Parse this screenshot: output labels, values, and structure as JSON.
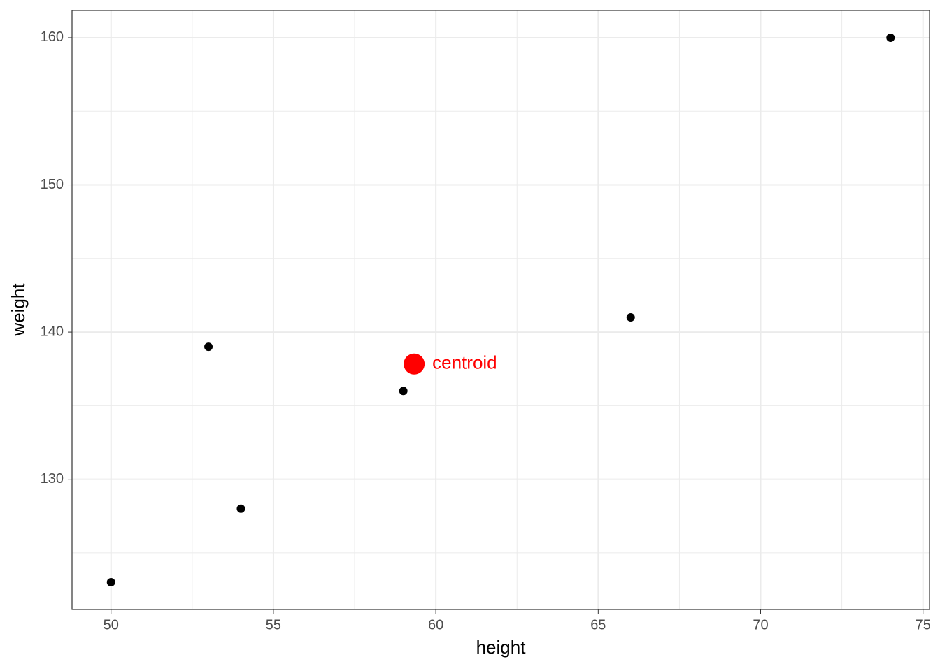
{
  "chart_data": {
    "type": "scatter",
    "x_label": "height",
    "y_label": "weight",
    "series": [
      {
        "color": "#000000",
        "x": [
          50,
          53,
          54,
          59,
          66,
          74
        ],
        "y": [
          123,
          139,
          128,
          136,
          141,
          160
        ]
      },
      {
        "color": "#ff0000",
        "x": [
          59.333
        ],
        "y": [
          137.833
        ],
        "label": "centroid"
      }
    ],
    "xlim": [
      48.8,
      75.2
    ],
    "ylim": [
      121.15,
      161.85
    ],
    "xticks": [
      50,
      55,
      60,
      65,
      70,
      75
    ],
    "yticks": [
      130,
      140,
      150,
      160
    ],
    "xminor": [
      52.5,
      57.5,
      62.5,
      67.5,
      72.5
    ],
    "yminor": [
      125,
      135,
      145,
      155
    ],
    "grid": true
  }
}
